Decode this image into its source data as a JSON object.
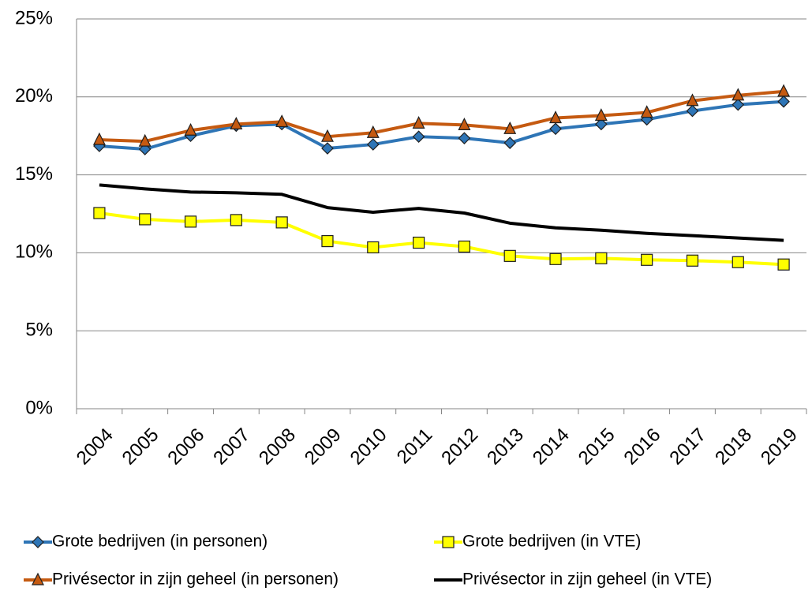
{
  "chart_data": {
    "type": "line",
    "categories": [
      "2004",
      "2005",
      "2006",
      "2007",
      "2008",
      "2009",
      "2010",
      "2011",
      "2012",
      "2013",
      "2014",
      "2015",
      "2016",
      "2017",
      "2018",
      "2019"
    ],
    "series": [
      {
        "name": "Grote bedrijven (in personen)",
        "color": "#2e75b6",
        "marker": "diamond",
        "values": [
          16.85,
          16.65,
          17.5,
          18.15,
          18.25,
          16.7,
          16.95,
          17.45,
          17.35,
          17.05,
          17.95,
          18.25,
          18.55,
          19.1,
          19.5,
          19.7
        ]
      },
      {
        "name": "Grote bedrijven (in VTE)",
        "color": "#ffff00",
        "marker": "square",
        "values": [
          12.55,
          12.15,
          12.0,
          12.1,
          11.95,
          10.75,
          10.35,
          10.65,
          10.4,
          9.8,
          9.6,
          9.65,
          9.55,
          9.5,
          9.4,
          9.25
        ]
      },
      {
        "name": "Privésector in zijn geheel (in personen)",
        "color": "#c55a11",
        "marker": "triangle",
        "values": [
          17.25,
          17.15,
          17.85,
          18.25,
          18.4,
          17.45,
          17.7,
          18.3,
          18.2,
          17.95,
          18.65,
          18.8,
          19.0,
          19.75,
          20.1,
          20.35
        ]
      },
      {
        "name": "Privésector in zijn geheel (in VTE)",
        "color": "#000000",
        "marker": "none",
        "values": [
          14.35,
          14.1,
          13.9,
          13.85,
          13.75,
          12.9,
          12.6,
          12.85,
          12.55,
          11.9,
          11.6,
          11.45,
          11.25,
          11.1,
          10.95,
          10.8
        ]
      }
    ],
    "ylim": [
      0,
      25
    ],
    "yticks": [
      {
        "value": 0,
        "label": "0%"
      },
      {
        "value": 5,
        "label": "5%"
      },
      {
        "value": 10,
        "label": "10%"
      },
      {
        "value": 15,
        "label": "15%"
      },
      {
        "value": 20,
        "label": "20%"
      },
      {
        "value": 25,
        "label": "25%"
      }
    ],
    "grid": true
  }
}
